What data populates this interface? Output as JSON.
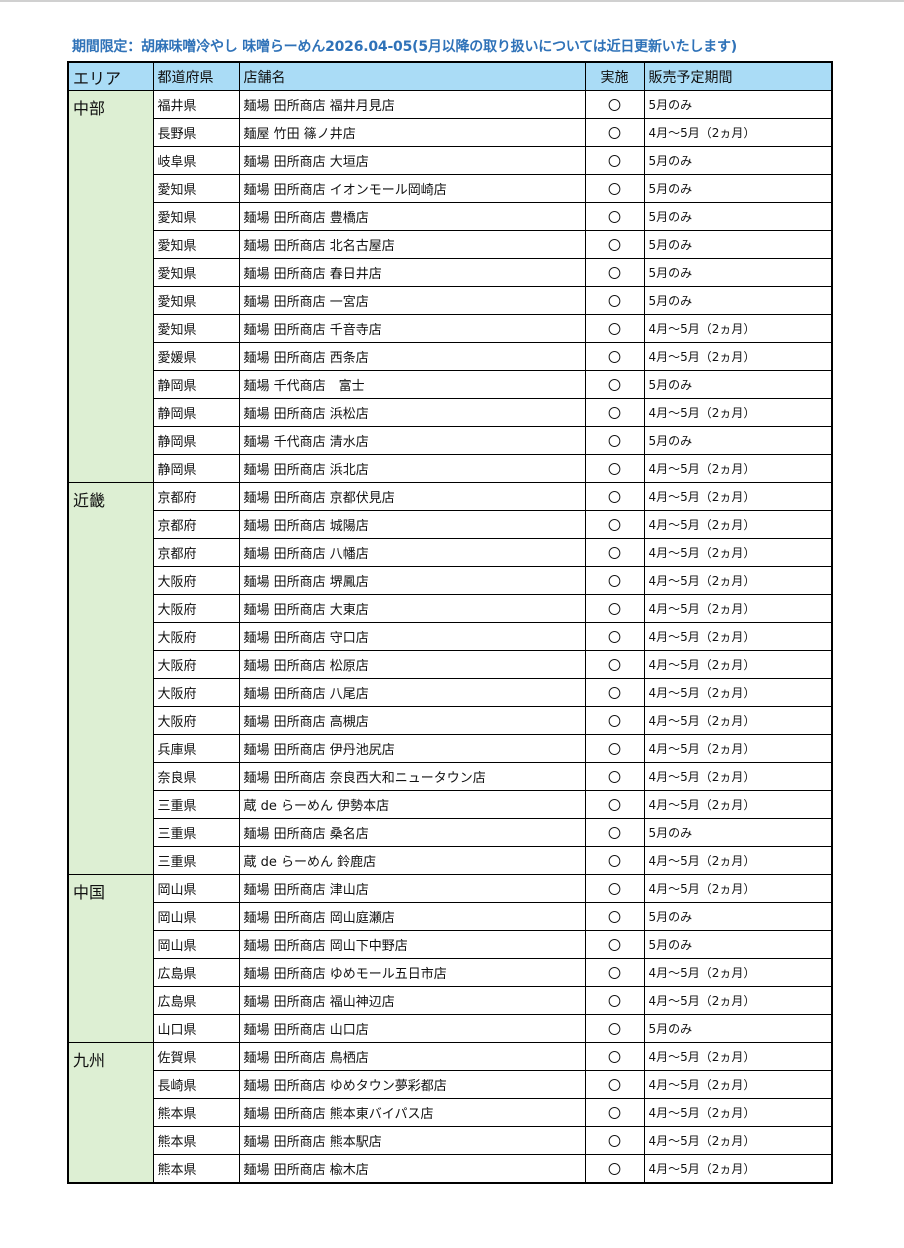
{
  "title": "期間限定：胡麻味噌冷やし 味噌らーめん2026.04-05(5月以降の取り扱いについては近日更新いたします)",
  "headers": {
    "area": "エリア",
    "prefecture": "都道府県",
    "store": "店舗名",
    "implemented": "実施",
    "period": "販売予定期間"
  },
  "colors": {
    "title": "#2f72b8",
    "header_bg": "#aadcf6",
    "area_bg": "#ddefd3"
  },
  "groups": [
    {
      "area": "中部",
      "rows": [
        [
          "福井県",
          "麺場 田所商店 福井月見店",
          "〇",
          "5月のみ"
        ],
        [
          "長野県",
          "麺屋 竹田 篠ノ井店",
          "〇",
          "4月～5月（2ヵ月）"
        ],
        [
          "岐阜県",
          "麺場 田所商店 大垣店",
          "〇",
          "5月のみ"
        ],
        [
          "愛知県",
          "麺場 田所商店 イオンモール岡崎店",
          "〇",
          "5月のみ"
        ],
        [
          "愛知県",
          "麺場 田所商店 豊橋店",
          "〇",
          "5月のみ"
        ],
        [
          "愛知県",
          "麺場 田所商店 北名古屋店",
          "〇",
          "5月のみ"
        ],
        [
          "愛知県",
          "麺場 田所商店 春日井店",
          "〇",
          "5月のみ"
        ],
        [
          "愛知県",
          "麺場 田所商店 一宮店",
          "〇",
          "5月のみ"
        ],
        [
          "愛知県",
          "麺場 田所商店 千音寺店",
          "〇",
          "4月～5月（2ヵ月）"
        ],
        [
          "愛媛県",
          "麺場 田所商店 西条店",
          "〇",
          "4月～5月（2ヵ月）"
        ],
        [
          "静岡県",
          "麺場 千代商店　富士",
          "〇",
          "5月のみ"
        ],
        [
          "静岡県",
          "麺場 田所商店 浜松店",
          "〇",
          "4月～5月（2ヵ月）"
        ],
        [
          "静岡県",
          "麺場 千代商店 清水店",
          "〇",
          "5月のみ"
        ],
        [
          "静岡県",
          "麺場 田所商店 浜北店",
          "〇",
          "4月～5月（2ヵ月）"
        ]
      ]
    },
    {
      "area": "近畿",
      "rows": [
        [
          "京都府",
          "麺場 田所商店 京都伏見店",
          "〇",
          "4月～5月（2ヵ月）"
        ],
        [
          "京都府",
          "麺場 田所商店 城陽店",
          "〇",
          "4月～5月（2ヵ月）"
        ],
        [
          "京都府",
          "麺場 田所商店 八幡店",
          "〇",
          "4月～5月（2ヵ月）"
        ],
        [
          "大阪府",
          "麺場 田所商店 堺鳳店",
          "〇",
          "4月～5月（2ヵ月）"
        ],
        [
          "大阪府",
          "麺場 田所商店 大東店",
          "〇",
          "4月～5月（2ヵ月）"
        ],
        [
          "大阪府",
          "麺場 田所商店 守口店",
          "〇",
          "4月～5月（2ヵ月）"
        ],
        [
          "大阪府",
          "麺場 田所商店 松原店",
          "〇",
          "4月～5月（2ヵ月）"
        ],
        [
          "大阪府",
          "麺場 田所商店 八尾店",
          "〇",
          "4月～5月（2ヵ月）"
        ],
        [
          "大阪府",
          "麺場 田所商店 高槻店",
          "〇",
          "4月～5月（2ヵ月）"
        ],
        [
          "兵庫県",
          "麺場 田所商店 伊丹池尻店",
          "〇",
          "4月～5月（2ヵ月）"
        ],
        [
          "奈良県",
          "麺場 田所商店 奈良西大和ニュータウン店",
          "〇",
          "4月～5月（2ヵ月）"
        ],
        [
          "三重県",
          "蔵 de らーめん 伊勢本店",
          "〇",
          "4月～5月（2ヵ月）"
        ],
        [
          "三重県",
          "麺場 田所商店 桑名店",
          "〇",
          "5月のみ"
        ],
        [
          "三重県",
          "蔵 de らーめん 鈴鹿店",
          "〇",
          "4月～5月（2ヵ月）"
        ]
      ]
    },
    {
      "area": "中国",
      "rows": [
        [
          "岡山県",
          "麺場 田所商店 津山店",
          "〇",
          "4月～5月（2ヵ月）"
        ],
        [
          "岡山県",
          "麺場 田所商店 岡山庭瀬店",
          "〇",
          "5月のみ"
        ],
        [
          "岡山県",
          "麺場 田所商店 岡山下中野店",
          "〇",
          "5月のみ"
        ],
        [
          "広島県",
          "麺場 田所商店 ゆめモール五日市店",
          "〇",
          "4月～5月（2ヵ月）"
        ],
        [
          "広島県",
          "麺場 田所商店 福山神辺店",
          "〇",
          "4月～5月（2ヵ月）"
        ],
        [
          "山口県",
          "麺場 田所商店 山口店",
          "〇",
          "5月のみ"
        ]
      ]
    },
    {
      "area": "九州",
      "rows": [
        [
          "佐賀県",
          "麺場 田所商店 鳥栖店",
          "〇",
          "4月～5月（2ヵ月）"
        ],
        [
          "長崎県",
          "麺場 田所商店 ゆめタウン夢彩都店",
          "〇",
          "4月～5月（2ヵ月）"
        ],
        [
          "熊本県",
          "麺場 田所商店 熊本東バイパス店",
          "〇",
          "4月～5月（2ヵ月）"
        ],
        [
          "熊本県",
          "麺場 田所商店 熊本駅店",
          "〇",
          "4月～5月（2ヵ月）"
        ],
        [
          "熊本県",
          "麺場 田所商店 楡木店",
          "〇",
          "4月～5月（2ヵ月）"
        ]
      ]
    }
  ]
}
